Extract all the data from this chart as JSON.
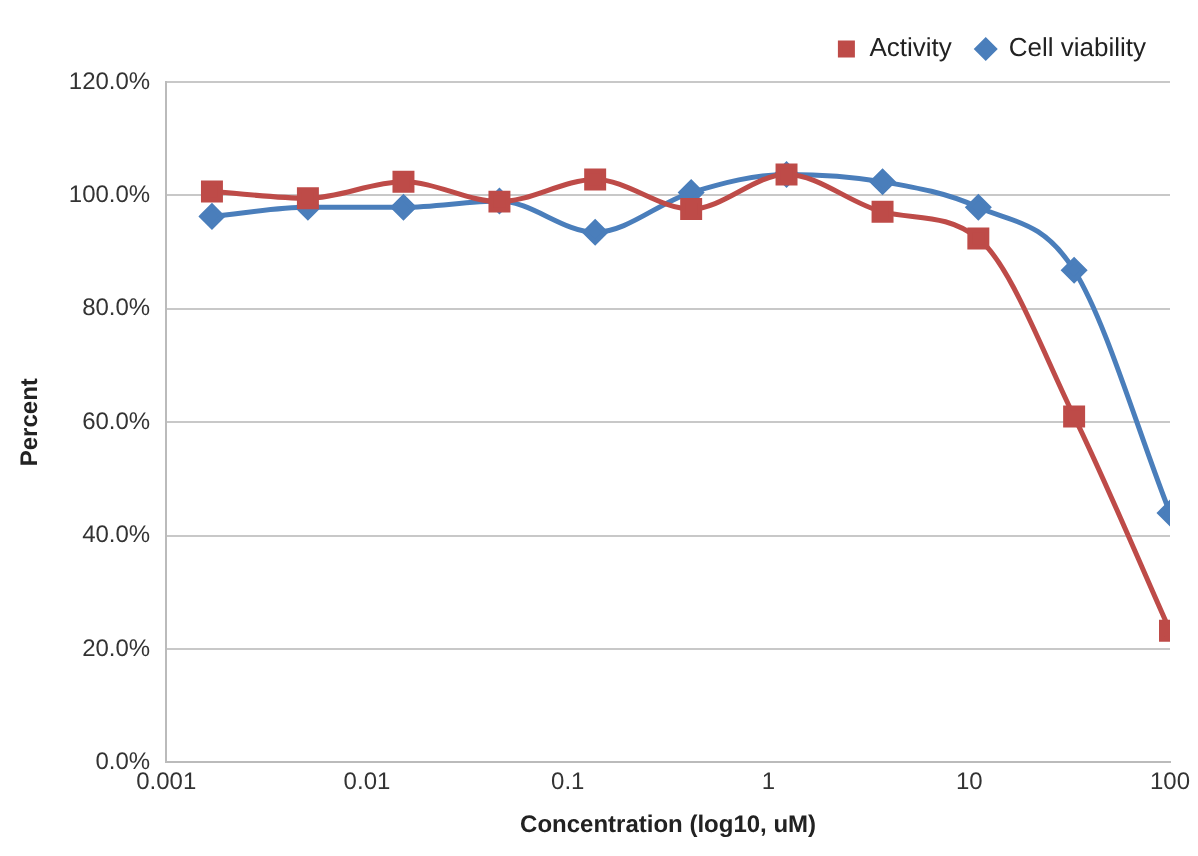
{
  "chart_data": {
    "type": "line",
    "xlabel": "Concentration (log10, uM)",
    "ylabel": "Percent",
    "x": [
      0.00169,
      0.00508,
      0.0152,
      0.0457,
      0.137,
      0.412,
      1.23,
      3.7,
      11.1,
      33.3,
      100
    ],
    "series": [
      {
        "name": "Cell viability",
        "color": "#4a7ebb",
        "marker": "diamond",
        "values": [
          96.3,
          97.9,
          97.9,
          99,
          93.5,
          100.5,
          103.7,
          102.4,
          97.9,
          86.8,
          44
        ]
      },
      {
        "name": "Activity",
        "color": "#be4b48",
        "marker": "square",
        "values": [
          100.7,
          99.5,
          102.4,
          98.9,
          102.8,
          97.6,
          103.7,
          97.1,
          92.4,
          61,
          23.2
        ]
      }
    ],
    "log": "x",
    "xlim": [
      0.001,
      100
    ],
    "xticks": [
      0.001,
      0.01,
      0.1,
      1,
      10,
      100
    ],
    "ylim": [
      0,
      120
    ],
    "yticks": [
      {
        "value": 0,
        "label": "0.0%"
      },
      {
        "value": 20,
        "label": "20.0%"
      },
      {
        "value": 40,
        "label": "40.0%"
      },
      {
        "value": 60,
        "label": "60.0%"
      },
      {
        "value": 80,
        "label": "80.0%"
      },
      {
        "value": 100,
        "label": "100.0%"
      },
      {
        "value": 120,
        "label": "120.0%"
      }
    ],
    "grid": "y",
    "legend": "top right",
    "line_style": "solid"
  }
}
